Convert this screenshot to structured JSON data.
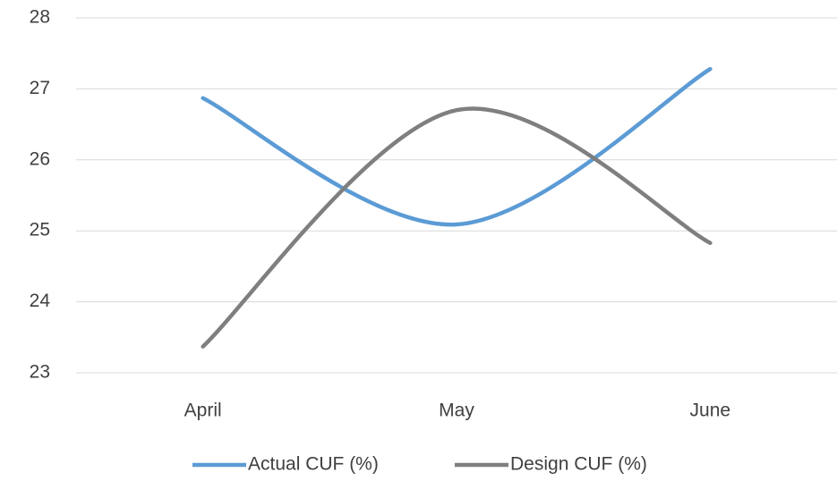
{
  "chart_data": {
    "type": "line",
    "categories": [
      "April",
      "May",
      "June"
    ],
    "series": [
      {
        "name": "Actual CUF (%)",
        "color": "#5b9bd5",
        "values": [
          26.87,
          25.09,
          27.28
        ]
      },
      {
        "name": "Design CUF (%)",
        "color": "#7f7f7f",
        "values": [
          23.37,
          26.7,
          24.83
        ]
      }
    ],
    "ylim": [
      23,
      28
    ],
    "yticks": [
      23,
      24,
      25,
      26,
      27,
      28
    ],
    "grid": true,
    "smooth": true,
    "legend": "bottom"
  }
}
